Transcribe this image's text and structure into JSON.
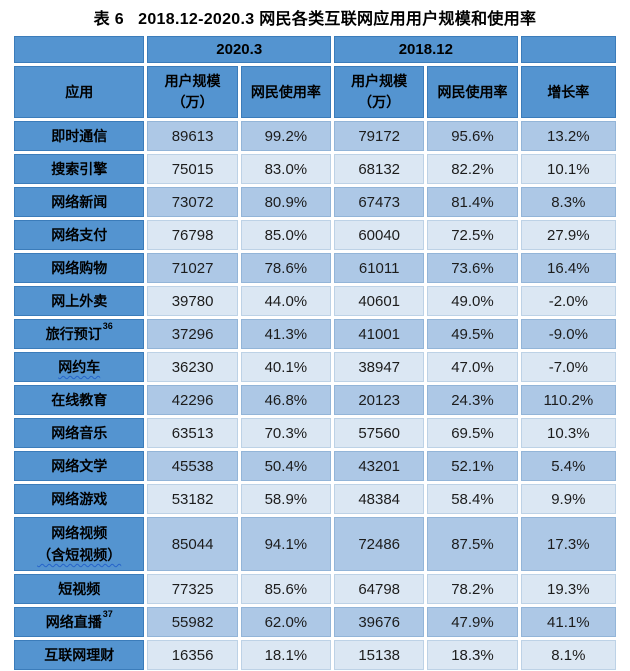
{
  "title": "表 6   2018.12-2020.3 网民各类互联网应用用户规模和使用率",
  "colors": {
    "header_blue": "#5494D0",
    "band_dark": "#ADC8E6",
    "band_light": "#DBE7F3",
    "header_text": "#000000",
    "wavy_underline": "#2563c9"
  },
  "table": {
    "period_headers": [
      "2020.3",
      "2018.12"
    ],
    "columns": [
      "应用",
      "用户规模\n（万）",
      "网民使用率",
      "用户规模\n（万）",
      "网民使用率",
      "增长率"
    ],
    "rows": [
      {
        "app": "即时通信",
        "v2020": "89613",
        "p2020": "99.2%",
        "v2018": "79172",
        "p2018": "95.6%",
        "growth": "13.2%"
      },
      {
        "app": "搜索引擎",
        "v2020": "75015",
        "p2020": "83.0%",
        "v2018": "68132",
        "p2018": "82.2%",
        "growth": "10.1%"
      },
      {
        "app": "网络新闻",
        "v2020": "73072",
        "p2020": "80.9%",
        "v2018": "67473",
        "p2018": "81.4%",
        "growth": "8.3%"
      },
      {
        "app": "网络支付",
        "v2020": "76798",
        "p2020": "85.0%",
        "v2018": "60040",
        "p2018": "72.5%",
        "growth": "27.9%"
      },
      {
        "app": "网络购物",
        "v2020": "71027",
        "p2020": "78.6%",
        "v2018": "61011",
        "p2018": "73.6%",
        "growth": "16.4%"
      },
      {
        "app": "网上外卖",
        "v2020": "39780",
        "p2020": "44.0%",
        "v2018": "40601",
        "p2018": "49.0%",
        "growth": "-2.0%"
      },
      {
        "app": "旅行预订",
        "sup": "36",
        "v2020": "37296",
        "p2020": "41.3%",
        "v2018": "41001",
        "p2018": "49.5%",
        "growth": "-9.0%"
      },
      {
        "app": "网约车",
        "wavy": true,
        "v2020": "36230",
        "p2020": "40.1%",
        "v2018": "38947",
        "p2018": "47.0%",
        "growth": "-7.0%"
      },
      {
        "app": "在线教育",
        "v2020": "42296",
        "p2020": "46.8%",
        "v2018": "20123",
        "p2018": "24.3%",
        "growth": "110.2%"
      },
      {
        "app": "网络音乐",
        "v2020": "63513",
        "p2020": "70.3%",
        "v2018": "57560",
        "p2018": "69.5%",
        "growth": "10.3%"
      },
      {
        "app": "网络文学",
        "v2020": "45538",
        "p2020": "50.4%",
        "v2018": "43201",
        "p2018": "52.1%",
        "growth": "5.4%"
      },
      {
        "app": "网络游戏",
        "v2020": "53182",
        "p2020": "58.9%",
        "v2018": "48384",
        "p2018": "58.4%",
        "growth": "9.9%"
      },
      {
        "app": "网络视频",
        "app2": "（含短视频）",
        "wavy2": true,
        "v2020": "85044",
        "p2020": "94.1%",
        "v2018": "72486",
        "p2018": "87.5%",
        "growth": "17.3%"
      },
      {
        "app": "短视频",
        "v2020": "77325",
        "p2020": "85.6%",
        "v2018": "64798",
        "p2018": "78.2%",
        "growth": "19.3%"
      },
      {
        "app": "网络直播",
        "sup": "37",
        "v2020": "55982",
        "p2020": "62.0%",
        "v2018": "39676",
        "p2018": "47.9%",
        "growth": "41.1%"
      },
      {
        "app": "互联网理财",
        "v2020": "16356",
        "p2020": "18.1%",
        "v2018": "15138",
        "p2018": "18.3%",
        "growth": "8.1%"
      }
    ]
  }
}
